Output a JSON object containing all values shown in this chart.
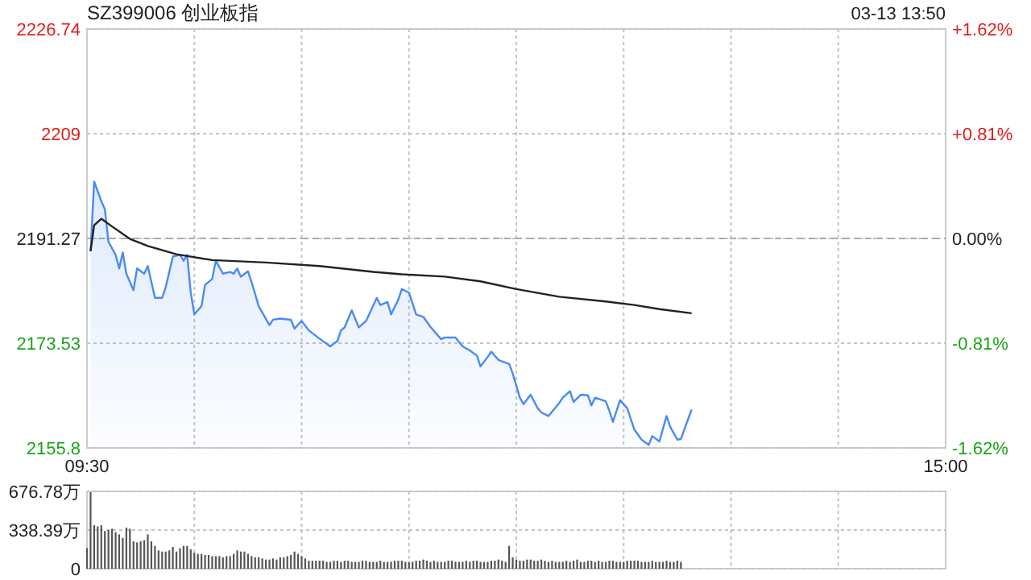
{
  "chart_data": [
    {
      "type": "area",
      "title": "SZ399006 创业板指",
      "annotations": [
        "03-13 13:50"
      ],
      "categories": [
        "09:30",
        null,
        null,
        null,
        null,
        null,
        null,
        null,
        null,
        null,
        null,
        null,
        null,
        null,
        null,
        null,
        null,
        null,
        null,
        null,
        null,
        null,
        null,
        null,
        null,
        null,
        null,
        null,
        null,
        null,
        null,
        null,
        null,
        null,
        null,
        null,
        null,
        null,
        null,
        null,
        null,
        null,
        null,
        null,
        null,
        null,
        null,
        null,
        null,
        null,
        null,
        null,
        null,
        null,
        null,
        null,
        null,
        null,
        null,
        null,
        null,
        null,
        null,
        null,
        null,
        null,
        null,
        null,
        null,
        null,
        null,
        null,
        null,
        null,
        null,
        null,
        null,
        null,
        null,
        null,
        null,
        null,
        null,
        null,
        null,
        null,
        null,
        null,
        null,
        null,
        null,
        null,
        null,
        null,
        null,
        null,
        null,
        null,
        null,
        null,
        null,
        null,
        null,
        null,
        null,
        null,
        null,
        null,
        null,
        null,
        null,
        null,
        null,
        null,
        null,
        null,
        null,
        null,
        null,
        null,
        null,
        null,
        null,
        null,
        null,
        null,
        null,
        null,
        null,
        null,
        null,
        null,
        null,
        null,
        null,
        null,
        null,
        null,
        null,
        null,
        null,
        null,
        null,
        null,
        null,
        null,
        null,
        null,
        null,
        null,
        null,
        null,
        null,
        null,
        null,
        null,
        null,
        null,
        null,
        null,
        null,
        null,
        null,
        null,
        null,
        null,
        null,
        null,
        null,
        null,
        null,
        null,
        null,
        null,
        null,
        null,
        null,
        null,
        null,
        null,
        null,
        null,
        null,
        null,
        null,
        null,
        null,
        null,
        null,
        null,
        null,
        null,
        null,
        null,
        null,
        null,
        null,
        null,
        null,
        null,
        null,
        null,
        null,
        null,
        null,
        null,
        null,
        null,
        null,
        null,
        null,
        null,
        null,
        null,
        null,
        null,
        null,
        null,
        null,
        null,
        null,
        null,
        null,
        null,
        null,
        null,
        null,
        null,
        null,
        null,
        null,
        null,
        null,
        null,
        null,
        null,
        null,
        null,
        null,
        null,
        "15:00"
      ],
      "ylim": [
        2155.8,
        2226.74
      ],
      "yticks": [
        2155.8,
        2173.53,
        2191.27,
        2209,
        2226.74
      ],
      "y2lim": [
        -1.62,
        1.62
      ],
      "y2ticks": [
        {
          "value": -1.62,
          "label": "-1.62%"
        },
        {
          "value": -0.81,
          "label": "-0.81%"
        },
        {
          "value": 0,
          "label": "0.00%"
        },
        {
          "value": 0.81,
          "label": "+0.81%"
        },
        {
          "value": 1.62,
          "label": "+1.62%"
        }
      ],
      "grid": true,
      "ref_lines": [
        {
          "axis": "y",
          "value": 2191.27,
          "line_style": "dashed",
          "color": "#aaaaaa"
        }
      ],
      "series": [
        {
          "color": "#4a8af4",
          "values": [
            null,
            2189.1,
            2200.9,
            null,
            2197.6,
            2196.2,
            2190.7,
            null,
            2188.5,
            2186.2,
            2188.9,
            2185.3,
            null,
            2182.5,
            2186.2,
            null,
            2185.3,
            2186.6,
            null,
            2181.2,
            null,
            2181.2,
            2183,
            null,
            2188.2,
            null,
            2188.5,
            2187.5,
            2188.5,
            2182.1,
            2178.4,
            null,
            2179.8,
            2183.4,
            null,
            2184.4,
            2187.5,
            null,
            2185.3,
            null,
            2185.6,
            2185.3,
            2186.2,
            2184.8,
            null,
            2185.7,
            2183.9,
            null,
            2179.8,
            null,
            null,
            2176.6,
            2177.5,
            null,
            2177.7,
            null,
            null,
            2177.5,
            2176,
            null,
            2177.3,
            null,
            2175.7,
            null,
            null,
            2174.3,
            null,
            null,
            2173,
            null,
            2173.9,
            2175.7,
            2176.2,
            null,
            2179.1,
            null,
            2176.2,
            null,
            2177.3,
            null,
            null,
            2181.2,
            2180,
            null,
            2180.5,
            2178.4,
            null,
            2180.9,
            2182.7,
            null,
            2182.1,
            null,
            2178.4,
            null,
            2178,
            null,
            2176.3,
            null,
            null,
            2174.2,
            2174.5,
            null,
            null,
            2174.5,
            null,
            2173,
            null,
            2172.3,
            null,
            2171.4,
            2169.6,
            null,
            2171.2,
            2172.1,
            null,
            2170.7,
            null,
            null,
            2170,
            2168.4,
            null,
            2164.3,
            2163.2,
            null,
            2164.8,
            null,
            2162.5,
            2161.8,
            null,
            2161.2,
            null,
            null,
            2163.4,
            2164.3,
            null,
            2165.4,
            2163.6,
            null,
            2164.8,
            null,
            2164.7,
            2163,
            2164.3,
            null,
            null,
            2163.7,
            2162.1,
            2160.2,
            null,
            2163.9,
            null,
            2162.5,
            null,
            2158.9,
            null,
            2157.2,
            null,
            2156.3,
            2157.8,
            null,
            2156.9,
            null,
            2161.2,
            2159.4,
            null,
            2157.2,
            2157.3,
            null,
            null,
            2162.3,
            null,
            null,
            null,
            null,
            null,
            null,
            null,
            null,
            null,
            null,
            null,
            null,
            null,
            null,
            null,
            null,
            null,
            null,
            null,
            null,
            null,
            null,
            null,
            null,
            null,
            null,
            null,
            null,
            null,
            null,
            null,
            null,
            null,
            null,
            null,
            null,
            null,
            null,
            null,
            null,
            null,
            null,
            null,
            null,
            null,
            null,
            null,
            null,
            null,
            null,
            null,
            null,
            null,
            null,
            null,
            null,
            null,
            null,
            null,
            null,
            null,
            null,
            null,
            null,
            null,
            null,
            null,
            null,
            null,
            null,
            null
          ]
        },
        {
          "type": "line",
          "color": "#222222",
          "values": [
            null,
            2189.1,
            2193.5,
            null,
            2194.6,
            null,
            null,
            2193.3,
            null,
            null,
            null,
            null,
            2191.2,
            null,
            null,
            null,
            null,
            2190,
            null,
            null,
            null,
            null,
            null,
            null,
            null,
            2188.6,
            null,
            null,
            null,
            null,
            null,
            null,
            null,
            null,
            null,
            2187.6,
            null,
            null,
            null,
            null,
            null,
            null,
            null,
            null,
            null,
            null,
            null,
            null,
            null,
            null,
            2187.2,
            null,
            null,
            null,
            null,
            null,
            null,
            null,
            null,
            null,
            null,
            null,
            null,
            null,
            null,
            2186.6,
            null,
            null,
            null,
            null,
            null,
            null,
            null,
            null,
            null,
            null,
            null,
            null,
            null,
            null,
            2185.6,
            null,
            null,
            null,
            null,
            null,
            null,
            null,
            2185.2,
            null,
            null,
            null,
            null,
            null,
            null,
            null,
            null,
            null,
            null,
            null,
            2184.8,
            null,
            null,
            null,
            null,
            null,
            null,
            null,
            null,
            null,
            2184,
            null,
            null,
            null,
            null,
            null,
            null,
            null,
            null,
            null,
            2182.7,
            null,
            null,
            null,
            null,
            null,
            null,
            null,
            null,
            null,
            null,
            null,
            2181.4,
            null,
            null,
            null,
            null,
            null,
            null,
            null,
            null,
            null,
            null,
            null,
            null,
            2180.6,
            null,
            null,
            null,
            null,
            null,
            null,
            null,
            2180,
            null,
            null,
            null,
            null,
            null,
            null,
            2179.3,
            null,
            null,
            null,
            null,
            null,
            null,
            null,
            null,
            2178.6,
            null,
            null,
            null,
            null,
            null,
            null,
            null,
            null,
            null,
            null,
            null,
            null,
            null,
            null,
            null,
            null,
            null,
            null,
            null,
            null,
            null,
            null,
            null,
            null,
            null,
            null,
            null,
            null,
            null,
            null,
            null,
            null,
            null,
            null,
            null,
            null,
            null,
            null,
            null,
            null,
            null,
            null,
            null,
            null,
            null,
            null,
            null,
            null,
            null,
            null,
            null,
            null,
            null,
            null,
            null,
            null,
            null,
            null,
            null,
            null,
            null,
            null,
            null,
            null,
            null,
            null,
            null,
            null,
            null,
            null,
            null
          ]
        }
      ]
    },
    {
      "type": "bar",
      "tick_labels": "y",
      "categories": [
        null,
        null,
        null,
        null,
        null,
        null,
        null,
        null,
        null,
        null,
        null,
        null,
        null,
        null,
        null,
        null,
        null,
        null,
        null,
        null,
        null,
        null,
        null,
        null,
        null,
        null,
        null,
        null,
        null,
        null,
        null,
        null,
        null,
        null,
        null,
        null,
        null,
        null,
        null,
        null,
        null,
        null,
        null,
        null,
        null,
        null,
        null,
        null,
        null,
        null,
        null,
        null,
        null,
        null,
        null,
        null,
        null,
        null,
        null,
        null,
        null,
        null,
        null,
        null,
        null,
        null,
        null,
        null,
        null,
        null,
        null,
        null,
        null,
        null,
        null,
        null,
        null,
        null,
        null,
        null,
        null,
        null,
        null,
        null,
        null,
        null,
        null,
        null,
        null,
        null,
        null,
        null,
        null,
        null,
        null,
        null,
        null,
        null,
        null,
        null,
        null,
        null,
        null,
        null,
        null,
        null,
        null,
        null,
        null,
        null,
        null,
        null,
        null,
        null,
        null,
        null,
        null,
        null,
        null,
        null,
        null,
        null,
        null,
        null,
        null,
        null,
        null,
        null,
        null,
        null,
        null,
        null,
        null,
        null,
        null,
        null,
        null,
        null,
        null,
        null,
        null,
        null,
        null,
        null,
        null,
        null,
        null,
        null,
        null,
        null,
        null,
        null,
        null,
        null,
        null,
        null,
        null,
        null,
        null,
        null,
        null,
        null,
        null,
        null,
        null,
        null,
        null,
        null,
        null,
        null,
        null,
        null,
        null,
        null,
        null,
        null,
        null,
        null,
        null,
        null,
        null,
        null,
        null,
        null,
        null,
        null,
        null,
        null,
        null,
        null,
        null,
        null,
        null,
        null,
        null,
        null,
        null,
        null,
        null,
        null,
        null,
        null,
        null,
        null,
        null,
        null,
        null,
        null,
        null,
        null,
        null,
        null,
        null,
        null,
        null,
        null,
        null,
        null,
        null,
        null,
        null,
        null,
        null,
        null,
        null,
        null,
        null,
        null,
        null,
        null,
        null,
        null,
        null,
        null,
        null,
        null,
        null,
        null,
        null,
        null,
        null
      ],
      "ylim": [
        0,
        676.78
      ],
      "yticks": [
        {
          "value": 0,
          "label": "0"
        },
        {
          "value": 338.39,
          "label": "338.39万"
        },
        {
          "value": 676.78,
          "label": "676.78万"
        }
      ],
      "grid": true,
      "series": [
        {
          "color": "#555555",
          "values": [
            180,
            670,
            380,
            370,
            380,
            330,
            340,
            350,
            320,
            300,
            270,
            360,
            350,
            240,
            230,
            240,
            250,
            300,
            240,
            200,
            160,
            150,
            150,
            160,
            190,
            150,
            180,
            200,
            200,
            170,
            140,
            130,
            130,
            120,
            120,
            110,
            110,
            110,
            100,
            110,
            110,
            130,
            160,
            150,
            150,
            130,
            110,
            100,
            100,
            90,
            80,
            80,
            90,
            80,
            100,
            100,
            110,
            120,
            150,
            130,
            110,
            90,
            70,
            70,
            70,
            70,
            70,
            60,
            60,
            70,
            70,
            60,
            70,
            70,
            60,
            60,
            60,
            70,
            70,
            60,
            60,
            60,
            70,
            60,
            60,
            60,
            70,
            70,
            70,
            60,
            60,
            60,
            70,
            70,
            80,
            70,
            60,
            70,
            60,
            60,
            60,
            70,
            70,
            60,
            60,
            60,
            70,
            60,
            70,
            70,
            60,
            60,
            60,
            70,
            70,
            80,
            70,
            60,
            200,
            100,
            80,
            70,
            70,
            80,
            80,
            70,
            70,
            80,
            70,
            60,
            70,
            60,
            60,
            60,
            70,
            60,
            70,
            80,
            60,
            60,
            70,
            70,
            60,
            70,
            60,
            60,
            70,
            70,
            60,
            60,
            60,
            70,
            70,
            70,
            70,
            60,
            60,
            60,
            70,
            60,
            60,
            60,
            70,
            60,
            60,
            70,
            60,
            null,
            null,
            null,
            null,
            null,
            null,
            null,
            null,
            null,
            null,
            null,
            null,
            null,
            null,
            null,
            null,
            null,
            null,
            null,
            null,
            null,
            null,
            null,
            null,
            null,
            null,
            null,
            null,
            null,
            null,
            null,
            null,
            null,
            null,
            null,
            null,
            null,
            null,
            null,
            null,
            null,
            null,
            null,
            null,
            null,
            null,
            null,
            null,
            null,
            null,
            null,
            null,
            null,
            null,
            null,
            null,
            null,
            null,
            null,
            null,
            null,
            null,
            null,
            null,
            null,
            null,
            null,
            null,
            null,
            null,
            null,
            null,
            null,
            null
          ]
        }
      ]
    }
  ]
}
